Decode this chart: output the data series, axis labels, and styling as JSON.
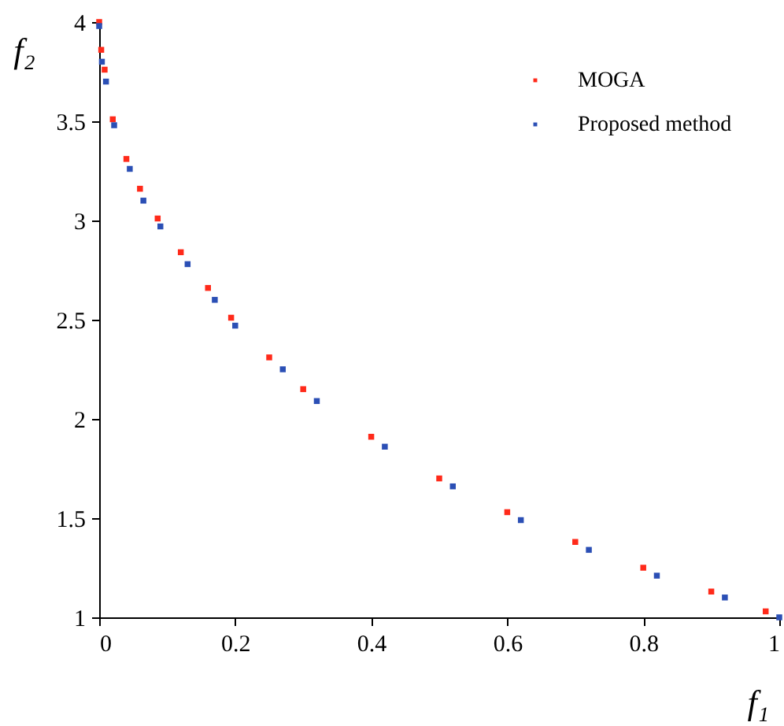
{
  "chart_data": {
    "type": "scatter",
    "xlabel": "f₁",
    "ylabel": "f₂",
    "xlim": [
      0,
      1
    ],
    "ylim": [
      1,
      4
    ],
    "xticks": [
      0,
      0.2,
      0.4,
      0.6,
      0.8,
      1
    ],
    "yticks": [
      1,
      1.5,
      2,
      2.5,
      3,
      3.5,
      4
    ],
    "grid": false,
    "legend": "top right",
    "marker": "square",
    "series": [
      {
        "name": "MOGA",
        "color": "#ff2a1a",
        "x": [
          0,
          0.003,
          0.008,
          0.02,
          0.04,
          0.06,
          0.086,
          0.12,
          0.16,
          0.194,
          0.25,
          0.3,
          0.4,
          0.5,
          0.6,
          0.7,
          0.8,
          0.9,
          0.98
        ],
        "values": [
          4,
          3.86,
          3.76,
          3.51,
          3.31,
          3.16,
          3.01,
          2.84,
          2.66,
          2.51,
          2.31,
          2.15,
          1.91,
          1.7,
          1.53,
          1.38,
          1.25,
          1.13,
          1.03
        ]
      },
      {
        "name": "Proposed method",
        "color": "#2b4fb5",
        "x": [
          0,
          0.004,
          0.01,
          0.022,
          0.045,
          0.065,
          0.09,
          0.13,
          0.17,
          0.2,
          0.27,
          0.32,
          0.42,
          0.52,
          0.62,
          0.72,
          0.82,
          0.92,
          1
        ],
        "values": [
          3.98,
          3.8,
          3.7,
          3.48,
          3.26,
          3.1,
          2.97,
          2.78,
          2.6,
          2.47,
          2.25,
          2.09,
          1.86,
          1.66,
          1.49,
          1.34,
          1.21,
          1.1,
          1
        ]
      }
    ]
  }
}
